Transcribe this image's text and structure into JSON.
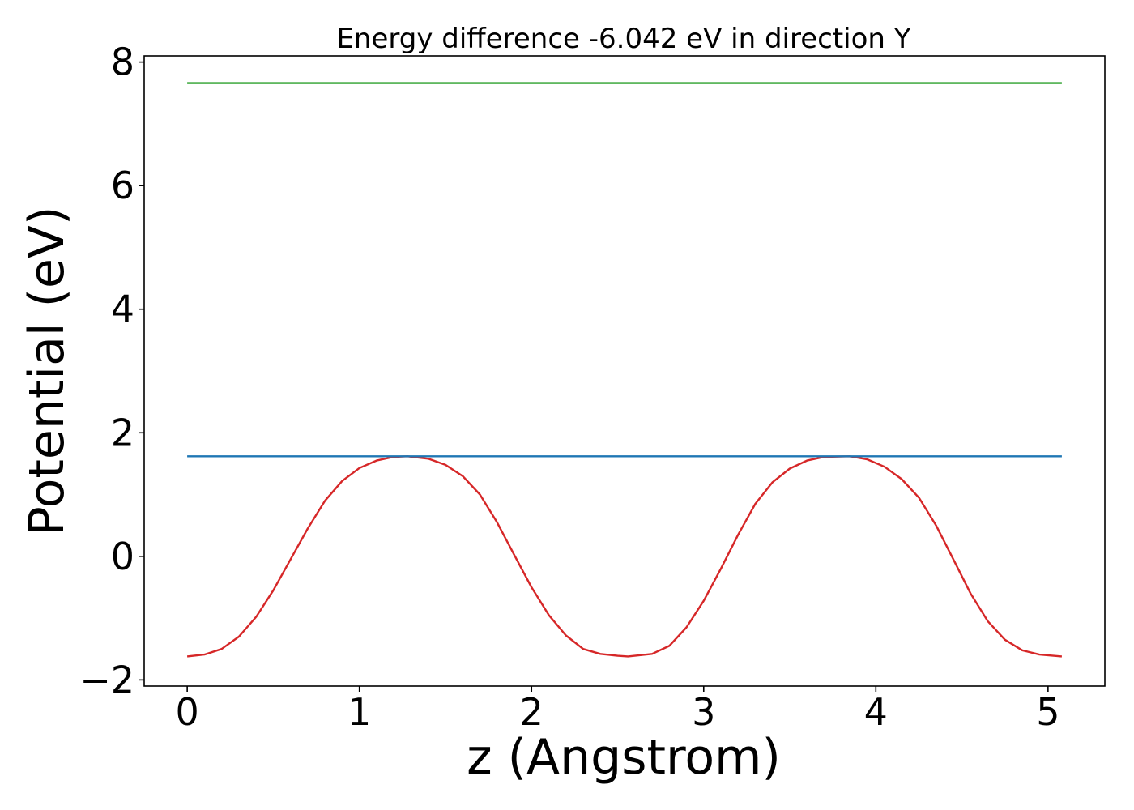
{
  "chart_data": {
    "type": "line",
    "title": "Energy difference -6.042 eV in direction Y",
    "xlabel": "z (Angstrom)",
    "ylabel": "Potential (eV)",
    "xlim": [
      -0.25,
      5.33
    ],
    "ylim": [
      -2.1,
      8.1
    ],
    "xticks": [
      0,
      1,
      2,
      3,
      4,
      5
    ],
    "xtick_labels": [
      "0",
      "1",
      "2",
      "3",
      "4",
      "5"
    ],
    "yticks": [
      -2,
      0,
      2,
      4,
      6,
      8
    ],
    "ytick_labels": [
      "−2",
      "0",
      "2",
      "4",
      "6",
      "8"
    ],
    "grid": false,
    "series": [
      {
        "color": "#d62728",
        "x": [
          0.0,
          0.1,
          0.2,
          0.3,
          0.4,
          0.5,
          0.6,
          0.7,
          0.8,
          0.9,
          1.0,
          1.1,
          1.2,
          1.28,
          1.4,
          1.5,
          1.6,
          1.7,
          1.8,
          1.9,
          2.0,
          2.1,
          2.2,
          2.3,
          2.4,
          2.5,
          2.56,
          2.7,
          2.8,
          2.9,
          3.0,
          3.1,
          3.2,
          3.3,
          3.4,
          3.5,
          3.6,
          3.7,
          3.85,
          3.95,
          4.05,
          4.15,
          4.25,
          4.35,
          4.45,
          4.55,
          4.65,
          4.75,
          4.85,
          4.95,
          5.08
        ],
        "y": [
          -1.62,
          -1.59,
          -1.5,
          -1.3,
          -0.98,
          -0.55,
          -0.05,
          0.45,
          0.9,
          1.22,
          1.43,
          1.55,
          1.61,
          1.62,
          1.58,
          1.48,
          1.3,
          1.0,
          0.55,
          0.02,
          -0.5,
          -0.95,
          -1.28,
          -1.5,
          -1.58,
          -1.61,
          -1.62,
          -1.58,
          -1.45,
          -1.15,
          -0.72,
          -0.2,
          0.35,
          0.85,
          1.2,
          1.42,
          1.55,
          1.61,
          1.62,
          1.57,
          1.45,
          1.25,
          0.95,
          0.5,
          -0.05,
          -0.6,
          -1.05,
          -1.35,
          -1.52,
          -1.59,
          -1.62
        ]
      },
      {
        "color": "#1f77b4",
        "x": [
          0.0,
          5.08
        ],
        "y": [
          1.62,
          1.62
        ]
      },
      {
        "color": "#2ca02c",
        "x": [
          0.0,
          5.08
        ],
        "y": [
          7.66,
          7.66
        ]
      }
    ]
  }
}
